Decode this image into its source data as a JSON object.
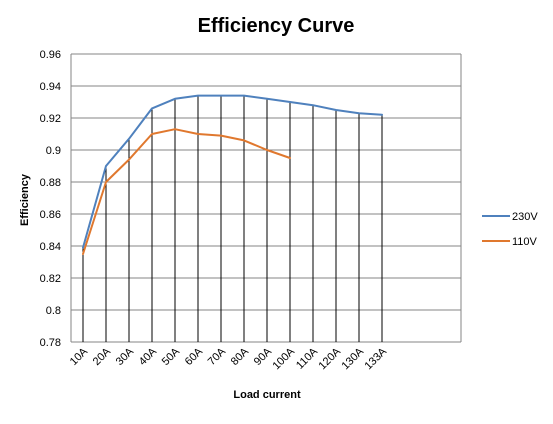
{
  "chart_data": {
    "type": "line",
    "title": "Efficiency  Curve",
    "xlabel": "Load current",
    "ylabel": "Efficiency",
    "categories": [
      "10A",
      "20A",
      "30A",
      "40A",
      "50A",
      "60A",
      "70A",
      "80A",
      "90A",
      "100A",
      "110A",
      "120A",
      "130A",
      "133A"
    ],
    "ylim": [
      0.78,
      0.96
    ],
    "yticks": [
      "0.78",
      "0.8",
      "0.82",
      "0.84",
      "0.86",
      "0.88",
      "0.9",
      "0.92",
      "0.94",
      "0.96"
    ],
    "grid": {
      "horizontal": true,
      "vertical_drop_lines": true
    },
    "legend_position": "right",
    "series": [
      {
        "name": "230V",
        "color": "#4f81bd",
        "values": [
          0.839,
          0.89,
          0.907,
          0.926,
          0.932,
          0.934,
          0.934,
          0.934,
          0.932,
          0.93,
          0.928,
          0.925,
          0.923,
          0.922
        ]
      },
      {
        "name": "110V",
        "color": "#e0782e",
        "values": [
          0.835,
          0.88,
          0.894,
          0.91,
          0.913,
          0.91,
          0.909,
          0.906,
          0.9,
          0.895,
          null,
          null,
          null,
          null
        ]
      }
    ]
  }
}
